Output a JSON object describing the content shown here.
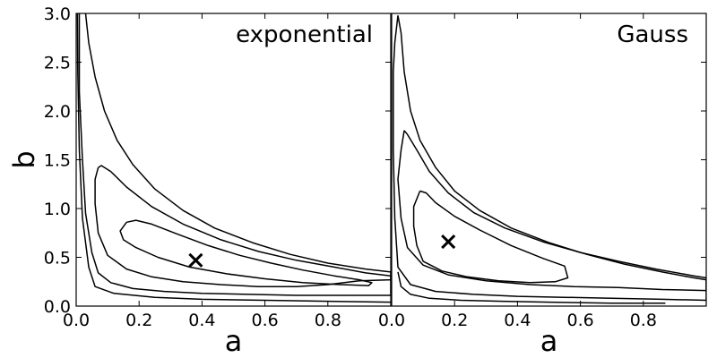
{
  "chart_data": [
    {
      "type": "contour",
      "title": "exponential",
      "xlabel": "a",
      "ylabel": "b",
      "xlim": [
        0.0,
        1.0
      ],
      "ylim": [
        0.0,
        3.0
      ],
      "xticks": [
        "0.0",
        "0.2",
        "0.4",
        "0.6",
        "0.8"
      ],
      "yticks": [
        "0.0",
        "0.5",
        "1.0",
        "1.5",
        "2.0",
        "2.5",
        "3.0"
      ],
      "best_fit_marker": {
        "a": 0.38,
        "b": 0.47,
        "symbol": "×"
      },
      "contours": [
        {
          "level": "inner",
          "points": [
            [
              0.16,
              0.86
            ],
            [
              0.19,
              0.88
            ],
            [
              0.24,
              0.84
            ],
            [
              0.32,
              0.74
            ],
            [
              0.42,
              0.62
            ],
            [
              0.52,
              0.52
            ],
            [
              0.62,
              0.44
            ],
            [
              0.72,
              0.37
            ],
            [
              0.82,
              0.31
            ],
            [
              0.9,
              0.27
            ],
            [
              0.94,
              0.24
            ],
            [
              0.93,
              0.21
            ],
            [
              0.84,
              0.22
            ],
            [
              0.72,
              0.24
            ],
            [
              0.6,
              0.28
            ],
            [
              0.48,
              0.33
            ],
            [
              0.36,
              0.4
            ],
            [
              0.26,
              0.5
            ],
            [
              0.19,
              0.6
            ],
            [
              0.15,
              0.68
            ],
            [
              0.14,
              0.77
            ],
            [
              0.16,
              0.86
            ]
          ]
        },
        {
          "level": "middle",
          "points": [
            [
              0.07,
              1.42
            ],
            [
              0.08,
              1.44
            ],
            [
              0.11,
              1.38
            ],
            [
              0.16,
              1.22
            ],
            [
              0.24,
              1.02
            ],
            [
              0.34,
              0.84
            ],
            [
              0.46,
              0.68
            ],
            [
              0.58,
              0.56
            ],
            [
              0.7,
              0.47
            ],
            [
              0.82,
              0.4
            ],
            [
              0.92,
              0.34
            ],
            [
              1.0,
              0.31
            ],
            [
              1.0,
              0.27
            ],
            [
              0.9,
              0.26
            ],
            [
              0.8,
              0.22
            ],
            [
              0.7,
              0.2
            ],
            [
              0.58,
              0.2
            ],
            [
              0.46,
              0.22
            ],
            [
              0.34,
              0.25
            ],
            [
              0.24,
              0.3
            ],
            [
              0.16,
              0.38
            ],
            [
              0.1,
              0.52
            ],
            [
              0.07,
              0.75
            ],
            [
              0.06,
              1.05
            ],
            [
              0.06,
              1.3
            ],
            [
              0.07,
              1.42
            ]
          ]
        },
        {
          "level": "outer",
          "points": [
            [
              0.03,
              3.0
            ],
            [
              0.04,
              2.7
            ],
            [
              0.06,
              2.35
            ],
            [
              0.09,
              2.0
            ],
            [
              0.13,
              1.7
            ],
            [
              0.18,
              1.45
            ],
            [
              0.25,
              1.2
            ],
            [
              0.34,
              0.98
            ],
            [
              0.44,
              0.8
            ],
            [
              0.56,
              0.65
            ],
            [
              0.68,
              0.53
            ],
            [
              0.8,
              0.44
            ],
            [
              0.92,
              0.38
            ],
            [
              1.0,
              0.35
            ],
            [
              1.0,
              0.11
            ],
            [
              0.85,
              0.11
            ],
            [
              0.7,
              0.11
            ],
            [
              0.55,
              0.12
            ],
            [
              0.4,
              0.13
            ],
            [
              0.28,
              0.15
            ],
            [
              0.18,
              0.18
            ],
            [
              0.11,
              0.24
            ],
            [
              0.07,
              0.34
            ],
            [
              0.05,
              0.55
            ],
            [
              0.03,
              0.95
            ],
            [
              0.02,
              1.5
            ],
            [
              0.01,
              2.2
            ],
            [
              0.01,
              3.0
            ]
          ]
        },
        {
          "level": "outermost",
          "points": [
            [
              1.0,
              0.04
            ],
            [
              0.8,
              0.05
            ],
            [
              0.6,
              0.06
            ],
            [
              0.4,
              0.07
            ],
            [
              0.25,
              0.09
            ],
            [
              0.12,
              0.13
            ],
            [
              0.06,
              0.2
            ],
            [
              0.04,
              0.4
            ],
            [
              0.02,
              0.9
            ],
            [
              0.01,
              1.6
            ],
            [
              0.005,
              2.4
            ],
            [
              0.004,
              3.0
            ]
          ]
        }
      ]
    },
    {
      "type": "contour",
      "title": "Gauss",
      "xlabel": "a",
      "ylabel": "",
      "xlim": [
        0.0,
        1.0
      ],
      "ylim": [
        0.0,
        3.0
      ],
      "xticks": [
        "0.0",
        "0.2",
        "0.4",
        "0.6",
        "0.8"
      ],
      "yticks": [],
      "best_fit_marker": {
        "a": 0.18,
        "b": 0.66,
        "symbol": "×"
      },
      "contours": [
        {
          "level": "inner",
          "points": [
            [
              0.09,
              1.18
            ],
            [
              0.11,
              1.16
            ],
            [
              0.14,
              1.06
            ],
            [
              0.2,
              0.92
            ],
            [
              0.28,
              0.78
            ],
            [
              0.38,
              0.62
            ],
            [
              0.48,
              0.49
            ],
            [
              0.55,
              0.41
            ],
            [
              0.56,
              0.29
            ],
            [
              0.52,
              0.25
            ],
            [
              0.44,
              0.24
            ],
            [
              0.34,
              0.26
            ],
            [
              0.24,
              0.3
            ],
            [
              0.16,
              0.36
            ],
            [
              0.1,
              0.46
            ],
            [
              0.08,
              0.62
            ],
            [
              0.07,
              0.82
            ],
            [
              0.07,
              1.02
            ],
            [
              0.09,
              1.18
            ]
          ]
        },
        {
          "level": "middle",
          "points": [
            [
              0.04,
              1.8
            ],
            [
              0.05,
              1.76
            ],
            [
              0.08,
              1.6
            ],
            [
              0.12,
              1.38
            ],
            [
              0.18,
              1.16
            ],
            [
              0.26,
              0.96
            ],
            [
              0.36,
              0.8
            ],
            [
              0.48,
              0.66
            ],
            [
              0.6,
              0.55
            ],
            [
              0.72,
              0.46
            ],
            [
              0.84,
              0.38
            ],
            [
              0.96,
              0.31
            ],
            [
              1.0,
              0.29
            ],
            [
              1.0,
              0.16
            ],
            [
              0.86,
              0.17
            ],
            [
              0.72,
              0.19
            ],
            [
              0.58,
              0.2
            ],
            [
              0.44,
              0.22
            ],
            [
              0.3,
              0.26
            ],
            [
              0.18,
              0.32
            ],
            [
              0.1,
              0.42
            ],
            [
              0.05,
              0.6
            ],
            [
              0.03,
              0.9
            ],
            [
              0.02,
              1.3
            ],
            [
              0.03,
              1.6
            ],
            [
              0.04,
              1.8
            ]
          ]
        },
        {
          "level": "outer",
          "points": [
            [
              0.02,
              2.98
            ],
            [
              0.03,
              2.8
            ],
            [
              0.04,
              2.4
            ],
            [
              0.06,
              2.0
            ],
            [
              0.09,
              1.7
            ],
            [
              0.14,
              1.42
            ],
            [
              0.2,
              1.18
            ],
            [
              0.28,
              0.98
            ],
            [
              0.38,
              0.8
            ],
            [
              0.5,
              0.65
            ],
            [
              0.62,
              0.53
            ],
            [
              0.74,
              0.43
            ],
            [
              0.86,
              0.35
            ],
            [
              0.96,
              0.29
            ],
            [
              1.0,
              0.27
            ],
            [
              1.0,
              0.06
            ],
            [
              0.86,
              0.07
            ],
            [
              0.7,
              0.08
            ],
            [
              0.55,
              0.09
            ],
            [
              0.4,
              0.1
            ],
            [
              0.26,
              0.12
            ],
            [
              0.14,
              0.15
            ],
            [
              0.06,
              0.22
            ],
            [
              0.02,
              0.4
            ],
            [
              0.01,
              0.9
            ],
            [
              0.005,
              1.6
            ],
            [
              0.005,
              2.4
            ],
            [
              0.01,
              2.7
            ],
            [
              0.02,
              2.98
            ]
          ]
        },
        {
          "level": "outermost",
          "points": [
            [
              0.87,
              0.03
            ],
            [
              0.7,
              0.03
            ],
            [
              0.5,
              0.04
            ],
            [
              0.35,
              0.05
            ],
            [
              0.22,
              0.06
            ],
            [
              0.12,
              0.08
            ],
            [
              0.06,
              0.12
            ],
            [
              0.03,
              0.2
            ],
            [
              0.02,
              0.35
            ]
          ]
        }
      ]
    }
  ]
}
